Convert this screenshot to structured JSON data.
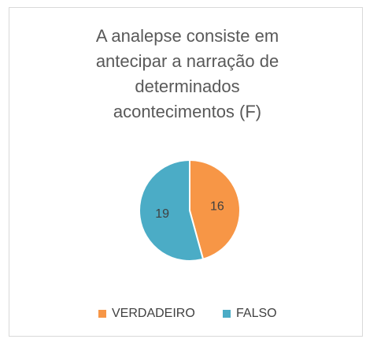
{
  "chart_data": {
    "type": "pie",
    "title": "A analepse consiste em antecipar a narração de determinados acontecimentos (F)",
    "categories": [
      "VERDADEIRO",
      "FALSO"
    ],
    "values": [
      16,
      19
    ],
    "colors": [
      "#f79646",
      "#4bacc6"
    ],
    "legend": "bottom"
  }
}
